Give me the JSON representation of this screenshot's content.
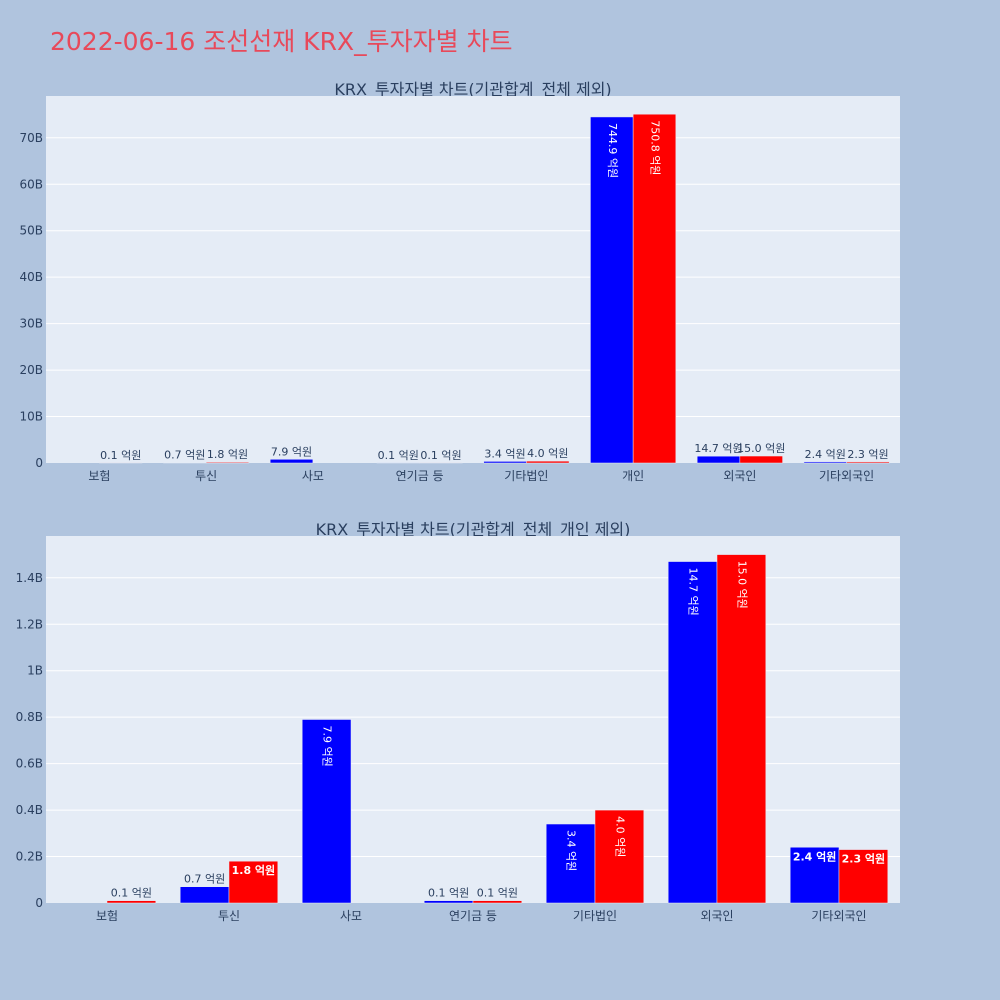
{
  "page_title": "2022-06-16 조선선재 KRX_투자자별 차트",
  "colors": {
    "series_a": "#0000ff",
    "series_b": "#ff0000",
    "plot_bg": "#e5ecf6",
    "page_bg": "#b0c4de",
    "title": "#e8495a"
  },
  "chart_data": [
    {
      "type": "bar",
      "title": "KRX_투자자별 차트(기관합계_전체 제외)",
      "categories": [
        "보험",
        "투신",
        "사모",
        "연기금 등",
        "기타법인",
        "개인",
        "외국인",
        "기타외국인"
      ],
      "series": [
        {
          "values": [
            0,
            70000000,
            790000000,
            10000000,
            340000000,
            74490000000,
            1470000000,
            240000000
          ],
          "labels": [
            "",
            "0.7 억원",
            "7.9 억원",
            "0.1 억원",
            "3.4 억원",
            "744.9 억원",
            "14.7 억원",
            "2.4 억원"
          ]
        },
        {
          "values": [
            10000000,
            180000000,
            0,
            10000000,
            400000000,
            75080000000,
            1500000000,
            230000000
          ],
          "labels": [
            "0.1 억원",
            "1.8 억원",
            "",
            "0.1 억원",
            "4.0 억원",
            "750.8 억원",
            "15.0 억원",
            "2.3 억원"
          ]
        }
      ],
      "ylim": [
        0,
        79000000000
      ],
      "yticks": [
        0,
        10000000000,
        20000000000,
        30000000000,
        40000000000,
        50000000000,
        60000000000,
        70000000000
      ],
      "ytick_labels": [
        "0",
        "10B",
        "20B",
        "30B",
        "40B",
        "50B",
        "60B",
        "70B"
      ],
      "grid": true
    },
    {
      "type": "bar",
      "title": "KRX_투자자별 차트(기관합계_전체_개인 제외)",
      "categories": [
        "보험",
        "투신",
        "사모",
        "연기금 등",
        "기타법인",
        "외국인",
        "기타외국인"
      ],
      "series": [
        {
          "values": [
            0,
            70000000,
            790000000,
            10000000,
            340000000,
            1470000000,
            240000000
          ],
          "labels": [
            "",
            "0.7 억원",
            "7.9 억원",
            "0.1 억원",
            "3.4 억원",
            "14.7 억원",
            "2.4 억원"
          ]
        },
        {
          "values": [
            10000000,
            180000000,
            0,
            10000000,
            400000000,
            1500000000,
            230000000
          ],
          "labels": [
            "0.1 억원",
            "1.8 억원",
            "",
            "0.1 억원",
            "4.0 억원",
            "15.0 억원",
            "2.3 억원"
          ]
        }
      ],
      "ylim": [
        0,
        1580000000
      ],
      "yticks": [
        0,
        200000000,
        400000000,
        600000000,
        800000000,
        1000000000,
        1200000000,
        1400000000
      ],
      "ytick_labels": [
        "0",
        "0.2B",
        "0.4B",
        "0.6B",
        "0.8B",
        "1B",
        "1.2B",
        "1.4B"
      ],
      "grid": true
    }
  ]
}
